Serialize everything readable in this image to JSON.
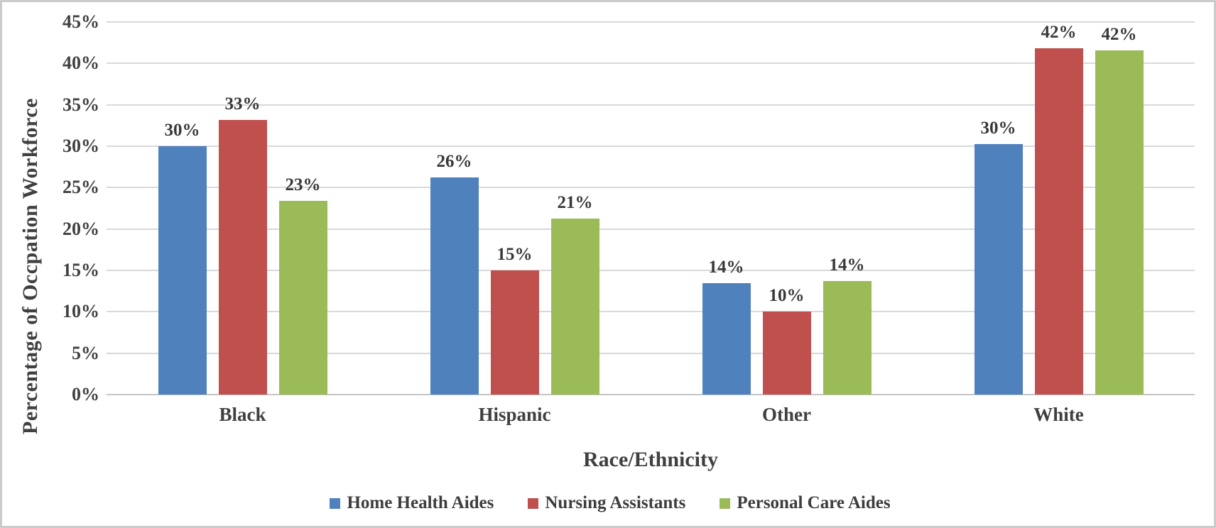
{
  "window": {
    "background_color": "#FFFFFF",
    "frame_border_color": "#CBCBCB"
  },
  "chart_data": {
    "type": "bar",
    "title": "",
    "xlabel": "Race/Ethnicity",
    "ylabel": "Percentage of Occpation Workforce",
    "categories": [
      "Black",
      "Hispanic",
      "Other",
      "White"
    ],
    "series": [
      {
        "name": "Home Health Aides",
        "color": "#4F81BD",
        "values": [
          30,
          26,
          14,
          30
        ],
        "data_labels": [
          "30%",
          "26%",
          "14%",
          "30%"
        ],
        "drawn_heights_pct": [
          30.0,
          26.2,
          13.5,
          30.3
        ]
      },
      {
        "name": "Nursing Assistants",
        "color": "#C0504D",
        "values": [
          33,
          15,
          10,
          42
        ],
        "data_labels": [
          "33%",
          "15%",
          "10%",
          "42%"
        ],
        "drawn_heights_pct": [
          33.2,
          15.0,
          10.0,
          41.8
        ]
      },
      {
        "name": "Personal Care Aides",
        "color": "#9BBB59",
        "values": [
          23,
          21,
          14,
          42
        ],
        "data_labels": [
          "23%",
          "21%",
          "14%",
          "42%"
        ],
        "drawn_heights_pct": [
          23.4,
          21.3,
          13.7,
          41.6
        ]
      }
    ],
    "ylim": [
      0,
      45
    ],
    "yticks": [
      0,
      5,
      10,
      15,
      20,
      25,
      30,
      35,
      40,
      45
    ],
    "ytick_labels": [
      "0%",
      "5%",
      "10%",
      "15%",
      "20%",
      "25%",
      "30%",
      "35%",
      "40%",
      "45%"
    ],
    "grid": true,
    "gridline_color": "#D9D9D9",
    "axis_line_color": "#C6C6C6",
    "text_color": "#404040",
    "legend_position": "bottom"
  }
}
